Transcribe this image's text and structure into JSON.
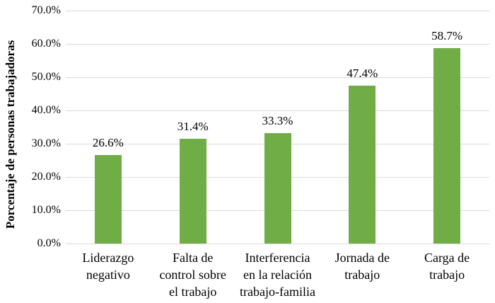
{
  "chart_data": {
    "type": "bar",
    "title": "",
    "categories": [
      "Liderazgo negativo",
      "Falta de control sobre el trabajo",
      "Interferencia en la relación trabajo-familia",
      "Jornada de trabajo",
      "Carga de trabajo"
    ],
    "category_lines": [
      [
        "Liderazgo",
        "negativo"
      ],
      [
        "Falta de",
        "control sobre",
        "el trabajo"
      ],
      [
        "Interferencia",
        "en la relación",
        "trabajo-familia"
      ],
      [
        "Jornada de",
        "trabajo"
      ],
      [
        "Carga de",
        "trabajo"
      ]
    ],
    "values": [
      26.6,
      31.4,
      33.3,
      47.4,
      58.7
    ],
    "value_labels": [
      "26.6%",
      "31.4%",
      "33.3%",
      "47.4%",
      "58.7%"
    ],
    "xlabel": "",
    "ylabel": "Porcentaje de personas trabajadoras",
    "ylim": [
      0,
      70
    ],
    "ytick_step": 10,
    "ytick_labels": [
      "0.0%",
      "10.0%",
      "20.0%",
      "30.0%",
      "40.0%",
      "50.0%",
      "60.0%",
      "70.0%"
    ],
    "legend": false,
    "grid": true,
    "colors": {
      "bar": "#70AD47",
      "gridline": "#D9D9D9",
      "text": "#000000",
      "background": "#FFFFFF"
    }
  }
}
